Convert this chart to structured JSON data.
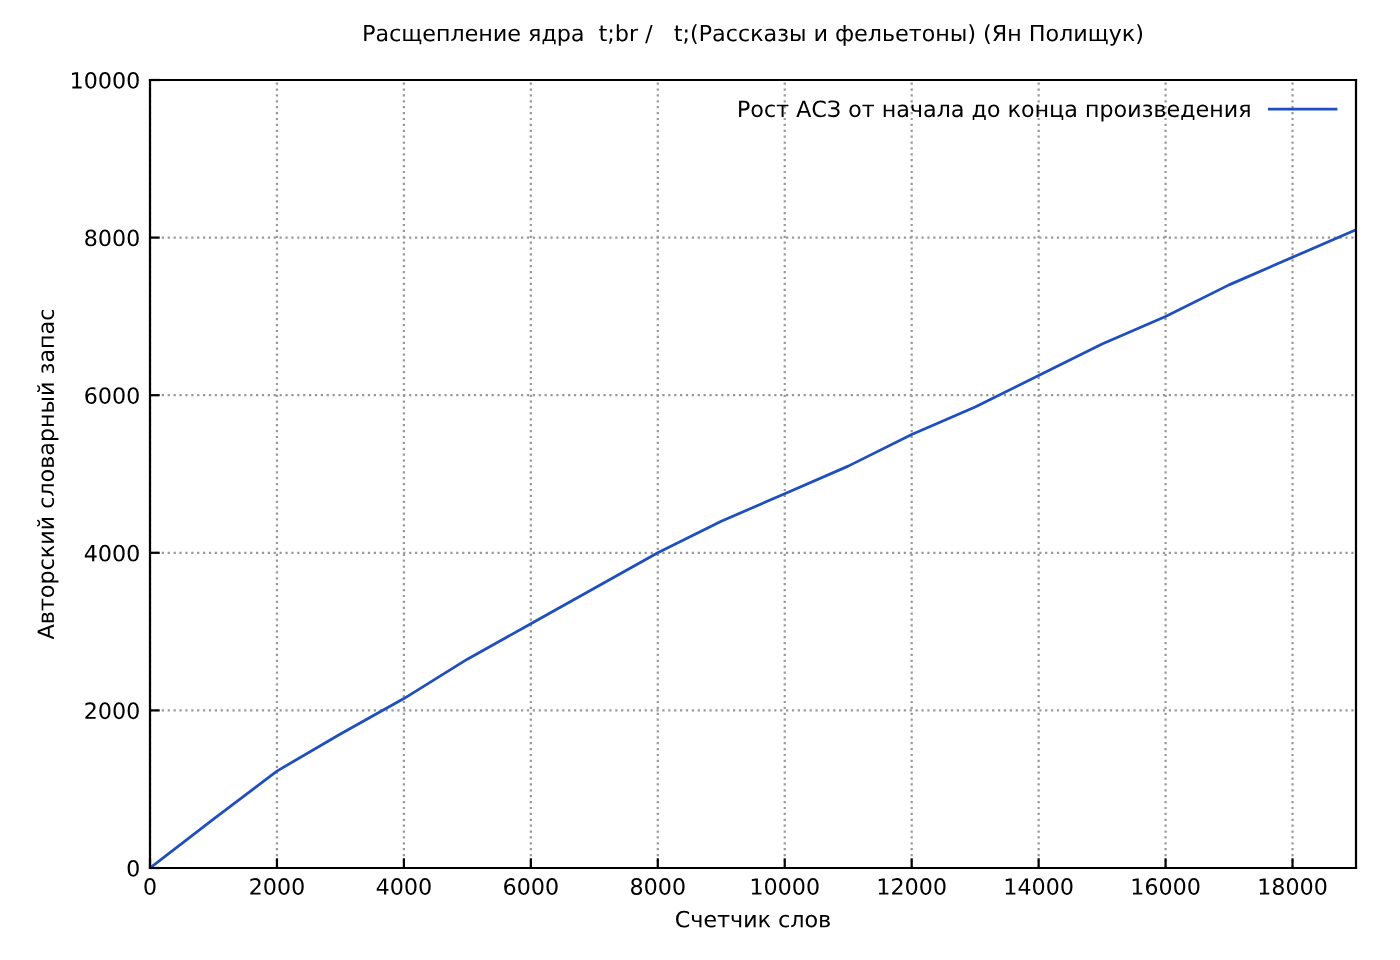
{
  "chart_data": {
    "type": "line",
    "title": "Расщепление ядра  t;br /   t;(Рассказы и фельетоны) (Ян Полищук)",
    "xlabel": "Счетчик слов",
    "ylabel": "Авторский словарный запас",
    "x": [
      0,
      1000,
      2000,
      3000,
      4000,
      5000,
      6000,
      7000,
      8000,
      9000,
      10000,
      11000,
      12000,
      13000,
      14000,
      15000,
      16000,
      17000,
      18000,
      19000
    ],
    "series": [
      {
        "name": "Рост АСЗ от начала до конца произведения",
        "color": "#1f4fbf",
        "values": [
          0,
          620,
          1230,
          1700,
          2150,
          2650,
          3100,
          3550,
          4000,
          4400,
          4750,
          5100,
          5500,
          5850,
          6250,
          6650,
          7000,
          7400,
          7750,
          8100
        ]
      }
    ],
    "xlim": [
      0,
      19000
    ],
    "ylim": [
      0,
      10000
    ],
    "xticks": [
      0,
      2000,
      4000,
      6000,
      8000,
      10000,
      12000,
      14000,
      16000,
      18000
    ],
    "yticks": [
      0,
      2000,
      4000,
      6000,
      8000,
      10000
    ],
    "grid": true,
    "legend": "top right",
    "line_style": "solid",
    "marker": "none"
  }
}
